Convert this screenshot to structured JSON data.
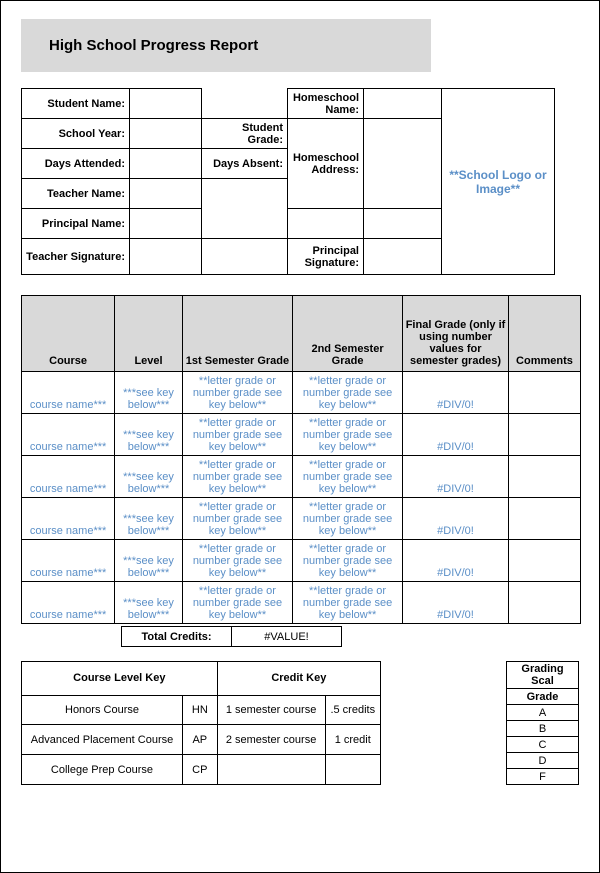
{
  "title": "High School Progress Report",
  "info": {
    "studentName": "Student Name:",
    "schoolYear": "School Year:",
    "daysAttended": "Days Attended:",
    "teacherName": "Teacher Name:",
    "principalName": "Principal Name:",
    "teacherSignature": "Teacher Signature:",
    "studentGrade": "Student Grade:",
    "daysAbsent": "Days Absent:",
    "homeschoolName": "Homeschool Name:",
    "homeschoolAddress": "Homeschool Address:",
    "principalSignature": "Principal Signature:",
    "logoText": "**School Logo or Image**"
  },
  "coursesTable": {
    "headers": {
      "course": "Course",
      "level": "Level",
      "sem1": "1st Semester Grade",
      "sem2": "2nd Semester Grade",
      "final": "Final Grade (only if using number values for semester grades)",
      "comments": "Comments"
    },
    "rows": [
      {
        "course": "course name***",
        "level": "***see key below***",
        "sem1": "**letter grade or number grade see key below**",
        "sem2": "**letter grade or number grade see key below**",
        "final": "#DIV/0!",
        "comments": ""
      },
      {
        "course": "course name***",
        "level": "***see key below***",
        "sem1": "**letter grade or number grade see key below**",
        "sem2": "**letter grade or number grade see key below**",
        "final": "#DIV/0!",
        "comments": ""
      },
      {
        "course": "course name***",
        "level": "***see key below***",
        "sem1": "**letter grade or number grade see key below**",
        "sem2": "**letter grade or number grade see key below**",
        "final": "#DIV/0!",
        "comments": ""
      },
      {
        "course": "course name***",
        "level": "***see key below***",
        "sem1": "**letter grade or number grade see key below**",
        "sem2": "**letter grade or number grade see key below**",
        "final": "#DIV/0!",
        "comments": ""
      },
      {
        "course": "course name***",
        "level": "***see key below***",
        "sem1": "**letter grade or number grade see key below**",
        "sem2": "**letter grade or number grade see key below**",
        "final": "#DIV/0!",
        "comments": ""
      },
      {
        "course": "course name***",
        "level": "***see key below***",
        "sem1": "**letter grade or number grade see key below**",
        "sem2": "**letter grade or number grade see key below**",
        "final": "#DIV/0!",
        "comments": ""
      }
    ],
    "totalLabel": "Total Credits:",
    "totalValue": "#VALUE!",
    "colWidths": {
      "course": 88,
      "level": 64,
      "sem1": 104,
      "sem2": 104,
      "final": 100,
      "comments": 68
    },
    "placeholder_color": "#5b8fc7",
    "header_bg": "#d9d9d9"
  },
  "courseLevelKey": {
    "title": "Course Level Key",
    "rows": [
      {
        "name": "Honors Course",
        "code": "HN"
      },
      {
        "name": "Advanced Placement Course",
        "code": "AP"
      },
      {
        "name": "College Prep Course",
        "code": "CP"
      }
    ]
  },
  "creditKey": {
    "title": "Credit Key",
    "rows": [
      {
        "name": "1 semester course",
        "val": ".5 credits"
      },
      {
        "name": "2 semester course",
        "val": "1 credit"
      },
      {
        "name": "",
        "val": ""
      }
    ]
  },
  "gradingScale": {
    "header1": "Grading Scal",
    "header2": "Grade",
    "grades": [
      "A",
      "B",
      "C",
      "D",
      "F"
    ]
  }
}
